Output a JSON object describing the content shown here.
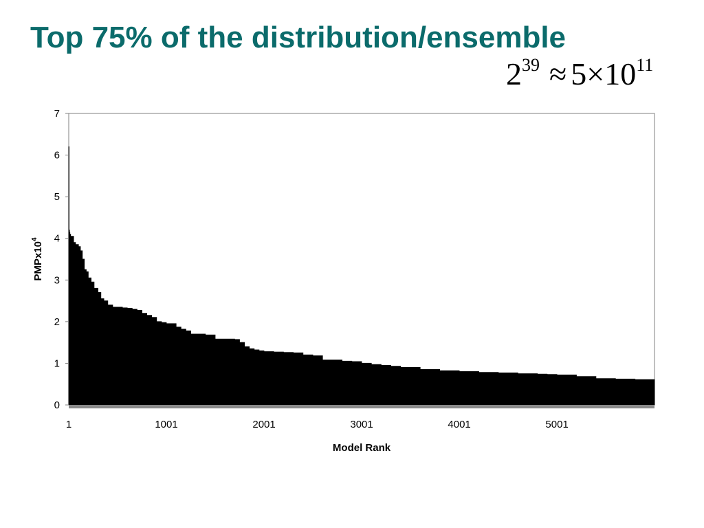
{
  "slide": {
    "title": "Top 75% of the distribution/ensemble",
    "formula": {
      "base": "2",
      "base_exp": "39",
      "approx": "≈",
      "mantissa": "5×10",
      "mantissa_exp": "11"
    }
  },
  "colors": {
    "title": "#0b6b6b",
    "fill": "#000000",
    "axis": "#808080"
  },
  "chart_data": {
    "type": "area",
    "title": "",
    "xlabel": "Model Rank",
    "ylabel": {
      "text": "PMPx10",
      "superscript": "4"
    },
    "xlim": [
      1,
      6000
    ],
    "ylim": [
      0,
      7
    ],
    "yticks": [
      0,
      1,
      2,
      3,
      4,
      5,
      6,
      7
    ],
    "xticks": [
      1,
      1001,
      2001,
      3001,
      4001,
      5001
    ],
    "grid": false,
    "legend": "none",
    "series": [
      {
        "x": [
          1,
          4,
          8,
          12,
          20,
          50,
          70,
          100,
          120,
          140,
          160,
          180,
          200,
          230,
          260,
          300,
          330,
          360,
          400,
          450,
          500,
          550,
          600,
          650,
          700,
          750,
          800,
          850,
          900,
          950,
          1000,
          1100,
          1150,
          1200,
          1250,
          1300,
          1400,
          1500,
          1600,
          1700,
          1750,
          1800,
          1850,
          1900,
          1950,
          2000,
          2100,
          2200,
          2300,
          2400,
          2500,
          2600,
          2800,
          2900,
          3000,
          3100,
          3200,
          3300,
          3400,
          3600,
          3800,
          4000,
          4200,
          4400,
          4600,
          4800,
          4900,
          5000,
          5200,
          5400,
          5600,
          5800,
          6000
        ],
        "y": [
          6.2,
          4.2,
          4.15,
          4.1,
          4.05,
          3.9,
          3.85,
          3.8,
          3.7,
          3.5,
          3.25,
          3.2,
          3.05,
          2.95,
          2.8,
          2.7,
          2.55,
          2.5,
          2.4,
          2.35,
          2.35,
          2.33,
          2.32,
          2.3,
          2.27,
          2.2,
          2.15,
          2.1,
          2.0,
          1.98,
          1.95,
          1.87,
          1.82,
          1.78,
          1.7,
          1.7,
          1.68,
          1.58,
          1.58,
          1.57,
          1.5,
          1.4,
          1.35,
          1.32,
          1.3,
          1.28,
          1.27,
          1.26,
          1.25,
          1.2,
          1.18,
          1.08,
          1.05,
          1.04,
          1.0,
          0.97,
          0.95,
          0.93,
          0.9,
          0.85,
          0.82,
          0.8,
          0.78,
          0.77,
          0.75,
          0.74,
          0.73,
          0.72,
          0.68,
          0.63,
          0.62,
          0.61,
          0.6
        ]
      }
    ]
  }
}
